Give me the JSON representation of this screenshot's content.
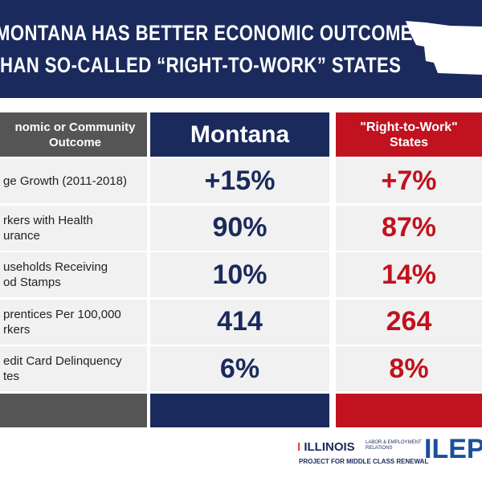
{
  "header": {
    "lines": [
      "MONTANA HAS BETTER ECONOMIC OUTCOMES",
      "HAN SO-CALLED “RIGHT-TO-WORK” STATES"
    ]
  },
  "table": {
    "columns": [
      [
        "nomic or Community",
        "Outcome"
      ],
      [
        "Montana"
      ],
      [
        "\"Right-to-Work\"",
        "States"
      ]
    ],
    "rows": [
      [
        [
          "ge Growth (2011-2018)"
        ],
        "+15%",
        "+7%"
      ],
      [
        [
          "rkers with Health",
          "urance"
        ],
        "90%",
        "87%"
      ],
      [
        [
          "useholds Receiving",
          "od Stamps"
        ],
        "10%",
        "14%"
      ],
      [
        [
          "prentices Per 100,000",
          "rkers"
        ],
        "414",
        "264"
      ],
      [
        [
          "edit Card Delinquency",
          "tes"
        ],
        "6%",
        "8%"
      ]
    ]
  },
  "footer": {
    "illinois": "ILLINOIS",
    "unit": [
      "LABOR & EMPLOYMENT",
      "RELATIONS"
    ],
    "project": "PROJECT FOR MIDDLE CLASS RENEWAL",
    "ilep": "ILEP"
  }
}
